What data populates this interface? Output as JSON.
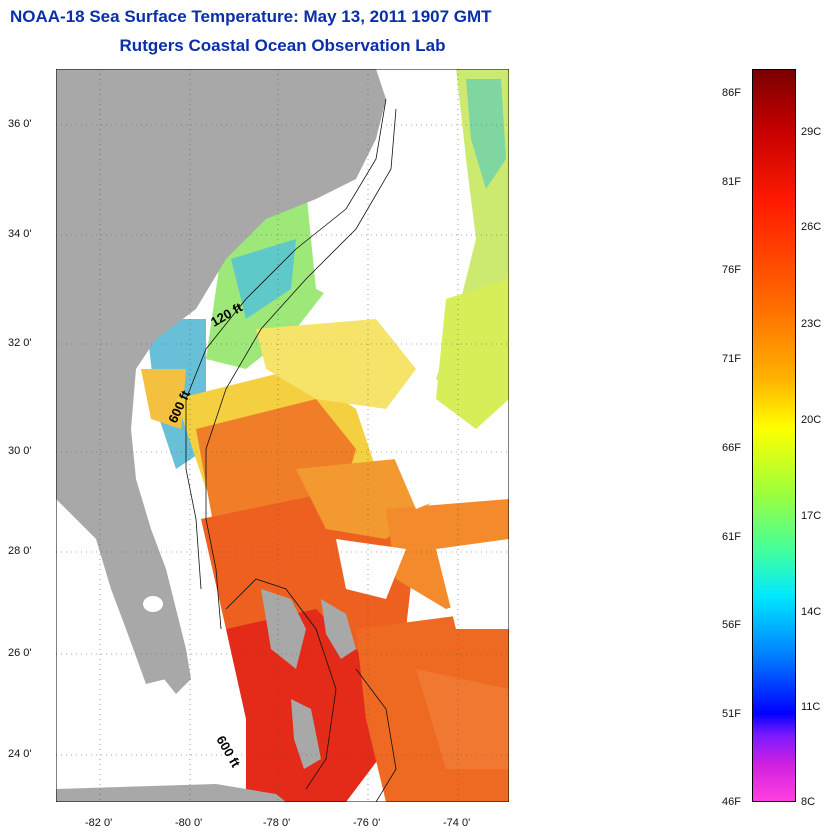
{
  "title": {
    "line1": "NOAA-18 Sea Surface Temperature:  May 13, 2011 1907 GMT",
    "line2": "Rutgers Coastal Ocean Observation Lab"
  },
  "map": {
    "lat_labels": [
      "36 0'",
      "34 0'",
      "32 0'",
      "30 0'",
      "28 0'",
      "26 0'",
      "24 0'"
    ],
    "lon_labels": [
      "-82 0'",
      "-80 0'",
      "-78 0'",
      "-76 0'",
      "-74 0'"
    ],
    "isobath_labels": [
      "120 ft",
      "600 ft",
      "600 ft"
    ],
    "colors": {
      "land": "#a8a8a8",
      "cloud": "#ffffff",
      "grid": "#555555"
    }
  },
  "colorbar": {
    "fahrenheit": [
      "86F",
      "81F",
      "76F",
      "71F",
      "66F",
      "61F",
      "56F",
      "51F",
      "46F"
    ],
    "celsius": [
      "29C",
      "26C",
      "23C",
      "20C",
      "17C",
      "14C",
      "11C",
      "8C"
    ],
    "range_f": [
      46,
      87
    ]
  }
}
